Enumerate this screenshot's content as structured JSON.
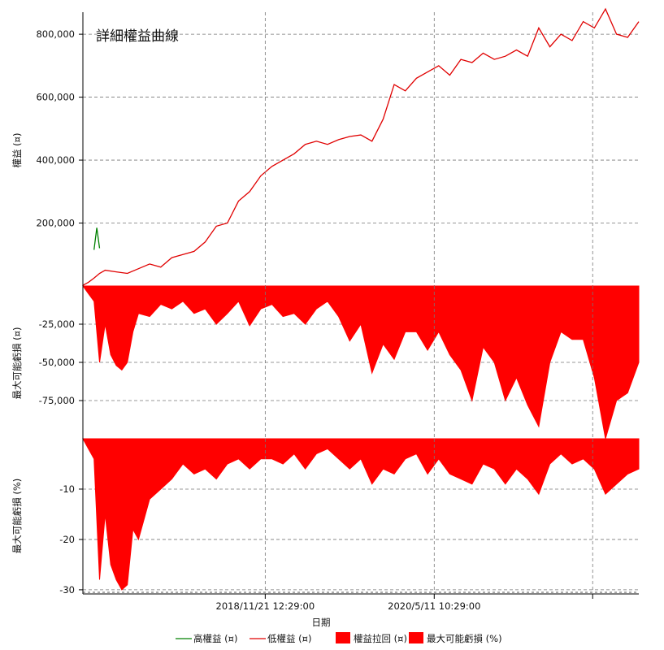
{
  "chart_data": [
    {
      "panel": "equity",
      "type": "line",
      "title": "詳細權益曲線",
      "ylabel": "權益 (¤)",
      "ylim": [
        0,
        870000
      ],
      "yticks": [
        {
          "value": 200000,
          "label": "200,000"
        },
        {
          "value": 400000,
          "label": "400,000"
        },
        {
          "value": 600000,
          "label": "600,000"
        },
        {
          "value": 800000,
          "label": "800,000"
        }
      ],
      "grid": true,
      "series": [
        {
          "name": "高權益 (¤)",
          "color": "#008000",
          "x": [
            0.02,
            0.025,
            0.03
          ],
          "values": [
            115000,
            185000,
            120000
          ]
        },
        {
          "name": "低權益 (¤)",
          "color": "#e00000",
          "x": [
            0,
            0.01,
            0.02,
            0.03,
            0.04,
            0.06,
            0.08,
            0.1,
            0.12,
            0.14,
            0.16,
            0.18,
            0.2,
            0.22,
            0.24,
            0.26,
            0.28,
            0.3,
            0.32,
            0.34,
            0.36,
            0.38,
            0.4,
            0.42,
            0.44,
            0.46,
            0.48,
            0.5,
            0.52,
            0.54,
            0.56,
            0.58,
            0.6,
            0.62,
            0.64,
            0.66,
            0.68,
            0.7,
            0.72,
            0.74,
            0.76,
            0.78,
            0.8,
            0.82,
            0.84,
            0.86,
            0.88,
            0.9,
            0.92,
            0.94,
            0.96,
            0.98,
            1.0
          ],
          "values": [
            2000,
            12000,
            25000,
            40000,
            50000,
            45000,
            40000,
            55000,
            70000,
            60000,
            90000,
            100000,
            110000,
            140000,
            190000,
            200000,
            270000,
            300000,
            350000,
            380000,
            400000,
            420000,
            450000,
            460000,
            450000,
            465000,
            475000,
            480000,
            460000,
            530000,
            640000,
            620000,
            660000,
            680000,
            700000,
            670000,
            720000,
            710000,
            740000,
            720000,
            730000,
            750000,
            730000,
            820000,
            760000,
            800000,
            780000,
            840000,
            820000,
            880000,
            800000,
            790000,
            840000
          ]
        }
      ]
    },
    {
      "panel": "drawdown",
      "type": "area",
      "ylabel": "最大可能虧損 (¤)",
      "ylim": [
        -100000,
        0
      ],
      "yticks": [
        {
          "value": -25000,
          "label": "-25,000"
        },
        {
          "value": -50000,
          "label": "-50,000"
        },
        {
          "value": -75000,
          "label": "-75,000"
        }
      ],
      "grid": true,
      "series": [
        {
          "name": "權益拉回 (¤)",
          "color": "#ff0000",
          "x": [
            0,
            0.01,
            0.02,
            0.03,
            0.04,
            0.05,
            0.06,
            0.07,
            0.08,
            0.09,
            0.1,
            0.12,
            0.14,
            0.16,
            0.18,
            0.2,
            0.22,
            0.24,
            0.26,
            0.28,
            0.3,
            0.32,
            0.34,
            0.36,
            0.38,
            0.4,
            0.42,
            0.44,
            0.46,
            0.48,
            0.5,
            0.52,
            0.54,
            0.56,
            0.58,
            0.6,
            0.62,
            0.64,
            0.66,
            0.68,
            0.7,
            0.72,
            0.74,
            0.76,
            0.78,
            0.8,
            0.82,
            0.84,
            0.86,
            0.88,
            0.9,
            0.92,
            0.94,
            0.96,
            0.98,
            1.0
          ],
          "values": [
            0,
            -5000,
            -10000,
            -50000,
            -25000,
            -45000,
            -52000,
            -55000,
            -50000,
            -30000,
            -18000,
            -20000,
            -12000,
            -15000,
            -10000,
            -18000,
            -15000,
            -25000,
            -18000,
            -10000,
            -26000,
            -15000,
            -12000,
            -20000,
            -18000,
            -25000,
            -15000,
            -10000,
            -20000,
            -36000,
            -25000,
            -57000,
            -38000,
            -48000,
            -30000,
            -30000,
            -42000,
            -30000,
            -45000,
            -55000,
            -75000,
            -40000,
            -50000,
            -75000,
            -60000,
            -78000,
            -92000,
            -50000,
            -30000,
            -35000,
            -35000,
            -60000,
            -100000,
            -75000,
            -70000,
            -50000
          ]
        }
      ]
    },
    {
      "panel": "drawdown_pct",
      "type": "area",
      "ylabel": "最大可能虧損 (%)",
      "ylim": [
        -30.5,
        0
      ],
      "yticks": [
        {
          "value": -10,
          "label": "-10"
        },
        {
          "value": -20,
          "label": "-20"
        },
        {
          "value": -30,
          "label": "-30"
        }
      ],
      "grid": true,
      "series": [
        {
          "name": "最大可能虧損 (%)",
          "color": "#ff0000",
          "x": [
            0,
            0.01,
            0.02,
            0.03,
            0.04,
            0.05,
            0.06,
            0.07,
            0.08,
            0.09,
            0.1,
            0.12,
            0.14,
            0.16,
            0.18,
            0.2,
            0.22,
            0.24,
            0.26,
            0.28,
            0.3,
            0.32,
            0.34,
            0.36,
            0.38,
            0.4,
            0.42,
            0.44,
            0.46,
            0.48,
            0.5,
            0.52,
            0.54,
            0.56,
            0.58,
            0.6,
            0.62,
            0.64,
            0.66,
            0.68,
            0.7,
            0.72,
            0.74,
            0.76,
            0.78,
            0.8,
            0.82,
            0.84,
            0.86,
            0.88,
            0.9,
            0.92,
            0.94,
            0.96,
            0.98,
            1.0
          ],
          "values": [
            0,
            -2,
            -4,
            -28,
            -15,
            -25,
            -28,
            -30,
            -29,
            -18,
            -20,
            -12,
            -10,
            -8,
            -5,
            -7,
            -6,
            -8,
            -5,
            -4,
            -6,
            -4,
            -4,
            -5,
            -3,
            -6,
            -3,
            -2,
            -4,
            -6,
            -4,
            -9,
            -6,
            -7,
            -4,
            -3,
            -7,
            -4,
            -7,
            -8,
            -9,
            -5,
            -6,
            -9,
            -6,
            -8,
            -11,
            -5,
            -3,
            -5,
            -4,
            -6,
            -11,
            -9,
            -7,
            -6
          ]
        }
      ]
    }
  ],
  "xaxis": {
    "label": "日期",
    "ticks": [
      {
        "pos": 0.328,
        "label": "2018/11/21 12:29:00"
      },
      {
        "pos": 0.632,
        "label": "2020/5/11 10:29:00"
      },
      {
        "pos": 0.917,
        "label": ""
      }
    ]
  },
  "legend": {
    "position": "bottom",
    "items": [
      {
        "label": "高權益 (¤)",
        "kind": "line",
        "color": "#008000"
      },
      {
        "label": "低權益 (¤)",
        "kind": "line",
        "color": "#e00000"
      },
      {
        "label": "權益拉回 (¤)",
        "kind": "box",
        "color": "#ff0000"
      },
      {
        "label": "最大可能虧損 (%)",
        "kind": "box",
        "color": "#ff0000"
      }
    ]
  }
}
